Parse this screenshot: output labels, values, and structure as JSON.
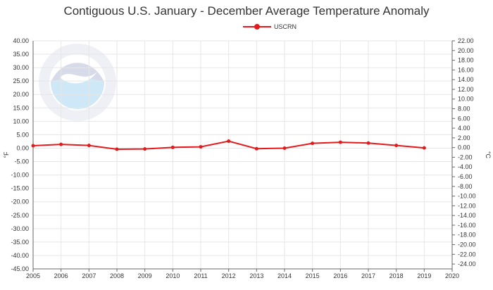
{
  "chart_data": {
    "type": "line",
    "title": "Contiguous U.S. January - December Average Temperature Anomaly",
    "ylabel_left": "°F",
    "ylabel_right": "°C",
    "xlim": [
      2005,
      2020
    ],
    "ylim": [
      -45,
      40
    ],
    "ylim_right": [
      -25,
      22
    ],
    "x_ticks": [
      "2005",
      "2006",
      "2007",
      "2008",
      "2009",
      "2010",
      "2011",
      "2012",
      "2013",
      "2014",
      "2015",
      "2016",
      "2017",
      "2018",
      "2019",
      "2020"
    ],
    "y_ticks_left": [
      "40.00",
      "35.00",
      "30.00",
      "25.00",
      "20.00",
      "15.00",
      "10.00",
      "5.00",
      "0.00",
      "-5.00",
      "-10.00",
      "-15.00",
      "-20.00",
      "-25.00",
      "-30.00",
      "-35.00",
      "-40.00",
      "-45.00"
    ],
    "y_ticks_right": [
      "22.00",
      "20.00",
      "18.00",
      "16.00",
      "14.00",
      "12.00",
      "10.00",
      "8.00",
      "6.00",
      "4.00",
      "2.00",
      "0.00",
      "-2.00",
      "-4.00",
      "-6.00",
      "-8.00",
      "-10.00",
      "-12.00",
      "-14.00",
      "-16.00",
      "-18.00",
      "-20.00",
      "-22.00",
      "-24.00"
    ],
    "grid": true,
    "legend_position": "top-center",
    "series": [
      {
        "name": "USCRN",
        "color": "#e41a1c",
        "x": [
          2005,
          2006,
          2007,
          2008,
          2009,
          2010,
          2011,
          2012,
          2013,
          2014,
          2015,
          2016,
          2017,
          2018,
          2019
        ],
        "y": [
          0.9,
          1.4,
          1.0,
          -0.4,
          -0.3,
          0.3,
          0.5,
          2.6,
          -0.2,
          0.0,
          1.8,
          2.2,
          1.9,
          1.0,
          0.1
        ]
      }
    ]
  }
}
